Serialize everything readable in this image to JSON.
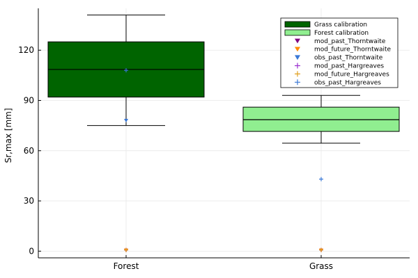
{
  "chart_data": {
    "type": "box",
    "categories": [
      "Forest",
      "Grass"
    ],
    "ylabel": "Sr,max [mm]",
    "xlabel": "",
    "title": "",
    "ylim": [
      -4,
      145
    ],
    "yticks": [
      0,
      30,
      60,
      90,
      120
    ],
    "grid": true,
    "legend_position": "top-right",
    "boxes": [
      {
        "category": "Forest",
        "whisker_low": 75,
        "q1": 92,
        "median": 108.5,
        "q3": 125,
        "whisker_high": 141,
        "color": "#006400",
        "legend_name": "Grass calibration"
      },
      {
        "category": "Grass",
        "whisker_low": 64.5,
        "q1": 71.5,
        "median": 78.5,
        "q3": 86,
        "whisker_high": 93,
        "color": "#90ee90",
        "legend_name": "Forest calibration"
      }
    ],
    "markers": [
      {
        "name": "mod_past_Thorntwaite",
        "shape": "triangle-down",
        "color": "#800080",
        "points": [
          {
            "category": "Forest",
            "y": 0.5
          },
          {
            "category": "Grass",
            "y": 0.5
          }
        ]
      },
      {
        "name": "mod_future_Thorntwaite",
        "shape": "triangle-down",
        "color": "#ff8c00",
        "points": [
          {
            "category": "Forest",
            "y": 0.5
          },
          {
            "category": "Grass",
            "y": 0.5
          }
        ]
      },
      {
        "name": "obs_past_Thorntwaite",
        "shape": "triangle-down",
        "color": "#3a78d6",
        "points": [
          {
            "category": "Forest",
            "y": 78
          }
        ]
      },
      {
        "name": "mod_past_Hargreaves",
        "shape": "plus",
        "color": "#9b30d0",
        "points": [
          {
            "category": "Forest",
            "y": 0.7
          },
          {
            "category": "Grass",
            "y": 0.7
          }
        ]
      },
      {
        "name": "mod_future_Hargreaves",
        "shape": "plus",
        "color": "#e0a020",
        "points": [
          {
            "category": "Forest",
            "y": 0.7
          },
          {
            "category": "Grass",
            "y": 0.7
          }
        ]
      },
      {
        "name": "obs_past_Hargreaves",
        "shape": "plus",
        "color": "#3a78d6",
        "points": [
          {
            "category": "Forest",
            "y": 108
          },
          {
            "category": "Grass",
            "y": 43
          }
        ]
      }
    ]
  }
}
